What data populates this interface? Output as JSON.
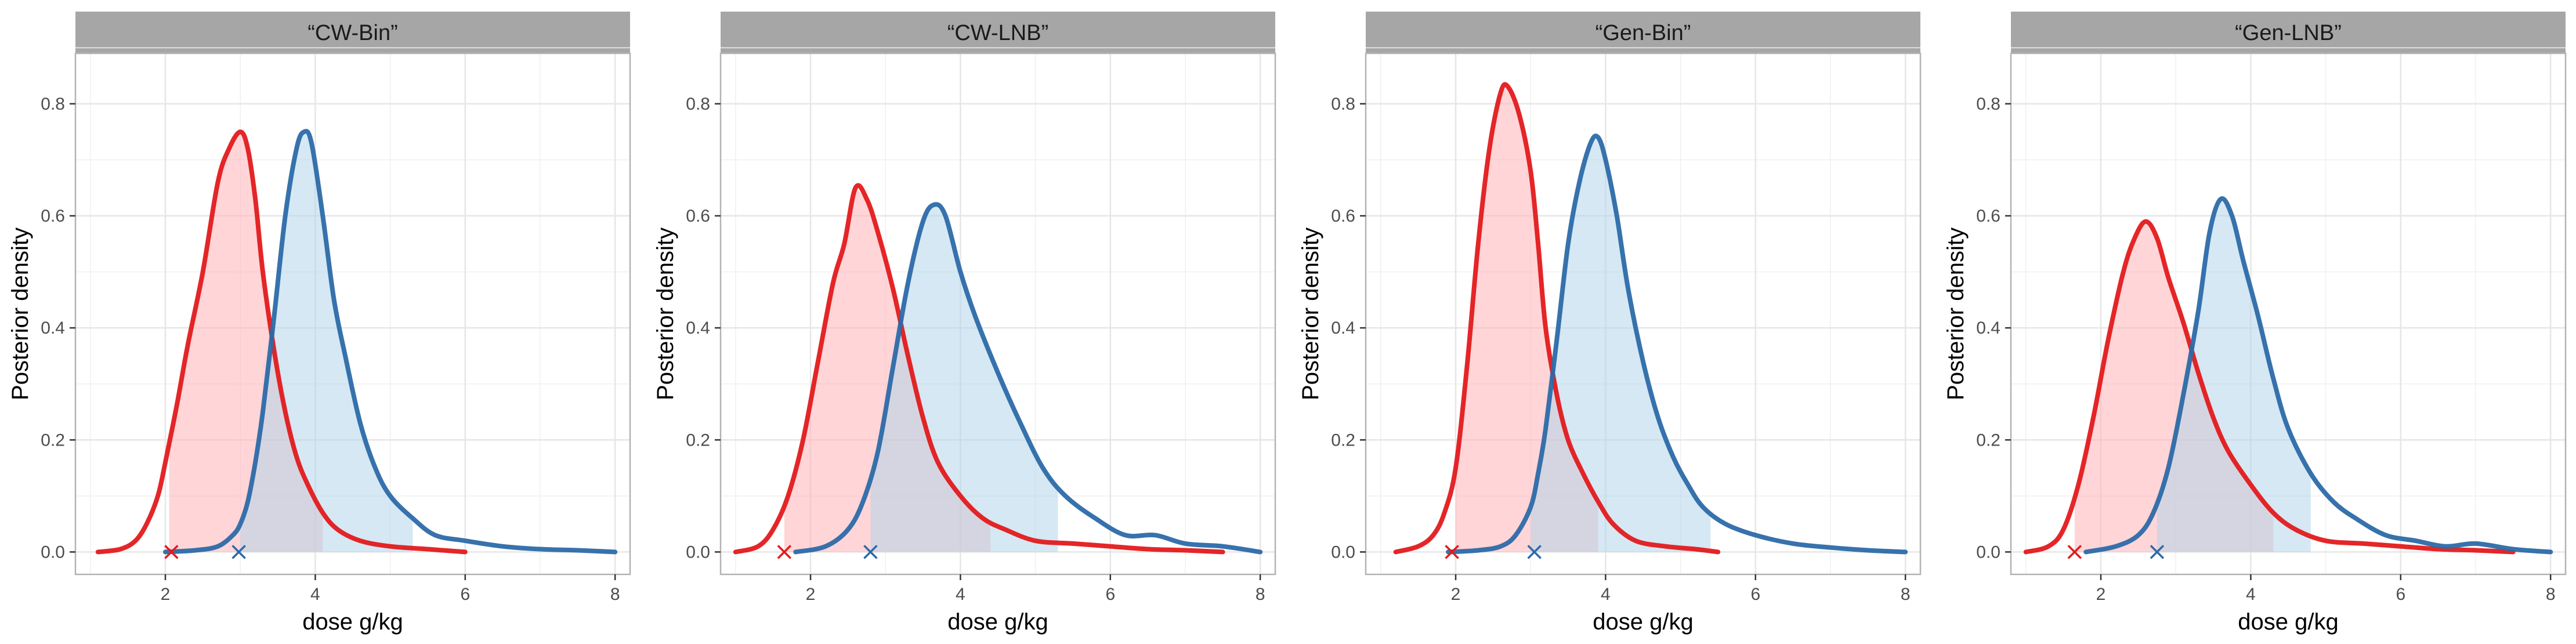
{
  "colors": {
    "red_line": "#e31a1c",
    "red_fill": "#ffb3b8",
    "blue_line": "#2c6aa8",
    "blue_fill": "#b3d6ea",
    "strip_bg": "#a6a6a6",
    "grid": "#e6e6e6",
    "panel_border": "#b3b3b3"
  },
  "chart_data": [
    {
      "type": "area",
      "title": "“CW-Bin”",
      "xlabel": "dose g/kg",
      "ylabel": "Posterior density",
      "xlim": [
        0.8,
        8.2
      ],
      "ylim": [
        -0.04,
        0.89
      ],
      "x_ticks": [
        "2",
        "4",
        "6",
        "8"
      ],
      "y_ticks": [
        "0.0",
        "0.2",
        "0.4",
        "0.6",
        "0.8"
      ],
      "series": [
        {
          "name": "red",
          "x": [
            1.1,
            1.4,
            1.6,
            1.75,
            1.9,
            2.0,
            2.15,
            2.3,
            2.5,
            2.7,
            2.85,
            3.0,
            3.1,
            3.2,
            3.3,
            3.45,
            3.6,
            3.75,
            3.9,
            4.1,
            4.3,
            4.6,
            5.0,
            5.5,
            6.0
          ],
          "y": [
            0.0,
            0.005,
            0.02,
            0.05,
            0.1,
            0.16,
            0.26,
            0.37,
            0.5,
            0.66,
            0.72,
            0.75,
            0.72,
            0.63,
            0.5,
            0.36,
            0.25,
            0.17,
            0.12,
            0.07,
            0.04,
            0.02,
            0.01,
            0.005,
            0.0
          ],
          "hdi": [
            2.05,
            4.1
          ],
          "marker_x": 2.08
        },
        {
          "name": "blue",
          "x": [
            2.0,
            2.4,
            2.7,
            2.9,
            3.0,
            3.1,
            3.2,
            3.3,
            3.45,
            3.6,
            3.75,
            3.85,
            3.95,
            4.1,
            4.25,
            4.4,
            4.6,
            4.8,
            5.0,
            5.3,
            5.6,
            6.0,
            6.5,
            7.0,
            7.5,
            8.0
          ],
          "y": [
            0.0,
            0.003,
            0.01,
            0.03,
            0.05,
            0.09,
            0.16,
            0.25,
            0.42,
            0.6,
            0.72,
            0.75,
            0.73,
            0.6,
            0.45,
            0.35,
            0.23,
            0.15,
            0.1,
            0.06,
            0.03,
            0.02,
            0.01,
            0.005,
            0.003,
            0.0
          ],
          "hdi": [
            3.0,
            5.3
          ],
          "marker_x": 2.98
        }
      ]
    },
    {
      "type": "area",
      "title": "“CW-LNB”",
      "xlabel": "dose g/kg",
      "ylabel": "Posterior density",
      "xlim": [
        0.8,
        8.2
      ],
      "ylim": [
        -0.04,
        0.89
      ],
      "x_ticks": [
        "2",
        "4",
        "6",
        "8"
      ],
      "y_ticks": [
        "0.0",
        "0.2",
        "0.4",
        "0.6",
        "0.8"
      ],
      "series": [
        {
          "name": "red",
          "x": [
            1.0,
            1.3,
            1.5,
            1.7,
            1.9,
            2.1,
            2.3,
            2.45,
            2.6,
            2.75,
            2.9,
            3.1,
            3.3,
            3.5,
            3.7,
            4.0,
            4.3,
            4.6,
            5.0,
            5.5,
            6.0,
            6.5,
            7.0,
            7.5
          ],
          "y": [
            0.0,
            0.01,
            0.04,
            0.1,
            0.2,
            0.34,
            0.48,
            0.55,
            0.65,
            0.63,
            0.57,
            0.47,
            0.35,
            0.24,
            0.16,
            0.1,
            0.06,
            0.04,
            0.02,
            0.015,
            0.01,
            0.005,
            0.003,
            0.0
          ],
          "hdi": [
            1.65,
            4.4
          ],
          "marker_x": 1.65
        },
        {
          "name": "blue",
          "x": [
            1.8,
            2.2,
            2.5,
            2.7,
            2.9,
            3.1,
            3.3,
            3.5,
            3.65,
            3.8,
            4.0,
            4.2,
            4.5,
            4.8,
            5.1,
            5.4,
            5.8,
            6.2,
            6.6,
            7.0,
            7.5,
            8.0
          ],
          "y": [
            0.0,
            0.01,
            0.04,
            0.09,
            0.18,
            0.33,
            0.48,
            0.59,
            0.62,
            0.6,
            0.5,
            0.42,
            0.32,
            0.23,
            0.15,
            0.1,
            0.06,
            0.03,
            0.03,
            0.015,
            0.01,
            0.0
          ],
          "hdi": [
            2.8,
            5.3
          ],
          "marker_x": 2.8
        }
      ]
    },
    {
      "type": "area",
      "title": "“Gen-Bin”",
      "xlabel": "dose g/kg",
      "ylabel": "Posterior density",
      "xlim": [
        0.8,
        8.2
      ],
      "ylim": [
        -0.04,
        0.89
      ],
      "x_ticks": [
        "2",
        "4",
        "6",
        "8"
      ],
      "y_ticks": [
        "0.0",
        "0.2",
        "0.4",
        "0.6",
        "0.8"
      ],
      "series": [
        {
          "name": "red",
          "x": [
            1.2,
            1.5,
            1.7,
            1.85,
            2.0,
            2.15,
            2.3,
            2.45,
            2.6,
            2.7,
            2.85,
            3.0,
            3.1,
            3.2,
            3.35,
            3.5,
            3.7,
            3.9,
            4.1,
            4.4,
            4.8,
            5.2,
            5.5
          ],
          "y": [
            0.0,
            0.01,
            0.03,
            0.07,
            0.15,
            0.33,
            0.55,
            0.72,
            0.82,
            0.83,
            0.78,
            0.68,
            0.55,
            0.4,
            0.28,
            0.2,
            0.14,
            0.09,
            0.05,
            0.02,
            0.01,
            0.005,
            0.0
          ],
          "hdi": [
            2.0,
            3.9
          ],
          "marker_x": 1.95
        },
        {
          "name": "blue",
          "x": [
            1.9,
            2.3,
            2.6,
            2.8,
            3.0,
            3.1,
            3.2,
            3.35,
            3.5,
            3.65,
            3.8,
            3.9,
            4.0,
            4.15,
            4.3,
            4.5,
            4.7,
            4.9,
            5.1,
            5.3,
            5.6,
            6.0,
            6.5,
            7.0,
            7.5,
            8.0
          ],
          "y": [
            0.0,
            0.003,
            0.01,
            0.03,
            0.08,
            0.14,
            0.22,
            0.38,
            0.55,
            0.66,
            0.73,
            0.74,
            0.7,
            0.6,
            0.47,
            0.34,
            0.24,
            0.17,
            0.12,
            0.08,
            0.05,
            0.03,
            0.015,
            0.008,
            0.003,
            0.0
          ],
          "hdi": [
            3.0,
            5.4
          ],
          "marker_x": 3.05
        }
      ]
    },
    {
      "type": "area",
      "title": "“Gen-LNB”",
      "xlabel": "dose g/kg",
      "ylabel": "Posterior density",
      "xlim": [
        0.8,
        8.2
      ],
      "ylim": [
        -0.04,
        0.89
      ],
      "x_ticks": [
        "2",
        "4",
        "6",
        "8"
      ],
      "y_ticks": [
        "0.0",
        "0.2",
        "0.4",
        "0.6",
        "0.8"
      ],
      "series": [
        {
          "name": "red",
          "x": [
            1.0,
            1.3,
            1.5,
            1.7,
            1.9,
            2.1,
            2.3,
            2.45,
            2.6,
            2.75,
            2.9,
            3.1,
            3.3,
            3.5,
            3.7,
            4.0,
            4.3,
            4.6,
            5.0,
            5.5,
            6.0,
            6.5,
            7.0,
            7.5
          ],
          "y": [
            0.0,
            0.01,
            0.04,
            0.12,
            0.24,
            0.38,
            0.5,
            0.56,
            0.59,
            0.56,
            0.49,
            0.41,
            0.32,
            0.24,
            0.18,
            0.12,
            0.07,
            0.04,
            0.02,
            0.015,
            0.01,
            0.005,
            0.003,
            0.0
          ],
          "hdi": [
            1.65,
            4.3
          ],
          "marker_x": 1.65
        },
        {
          "name": "blue",
          "x": [
            1.8,
            2.2,
            2.5,
            2.7,
            2.9,
            3.1,
            3.3,
            3.45,
            3.6,
            3.75,
            3.9,
            4.1,
            4.3,
            4.5,
            4.8,
            5.1,
            5.4,
            5.8,
            6.2,
            6.6,
            7.0,
            7.5,
            8.0
          ],
          "y": [
            0.0,
            0.01,
            0.03,
            0.07,
            0.15,
            0.28,
            0.43,
            0.57,
            0.63,
            0.6,
            0.52,
            0.42,
            0.31,
            0.22,
            0.14,
            0.09,
            0.06,
            0.03,
            0.02,
            0.01,
            0.015,
            0.005,
            0.0
          ],
          "hdi": [
            2.75,
            4.8
          ],
          "marker_x": 2.75
        }
      ]
    }
  ]
}
